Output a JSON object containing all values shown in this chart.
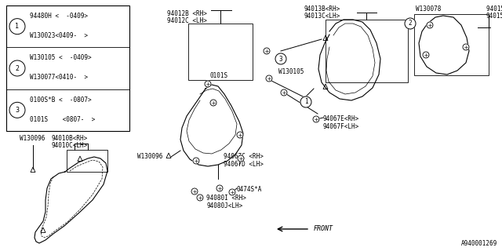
{
  "title": "A940001269",
  "bg_color": "#ffffff",
  "text_color": "#000000",
  "fig_width": 6.4,
  "fig_height": 3.2,
  "table_rows": [
    {
      "num": "1",
      "line1": "94480H <  -0409>",
      "line2": "W130023<0409-  >"
    },
    {
      "num": "2",
      "line1": "W130105 <  -0409>",
      "line2": "W130077<0410-  >"
    },
    {
      "num": "3",
      "line1": "0100S*B <  -0807>",
      "line2": "0101S    <0807-  >"
    }
  ]
}
